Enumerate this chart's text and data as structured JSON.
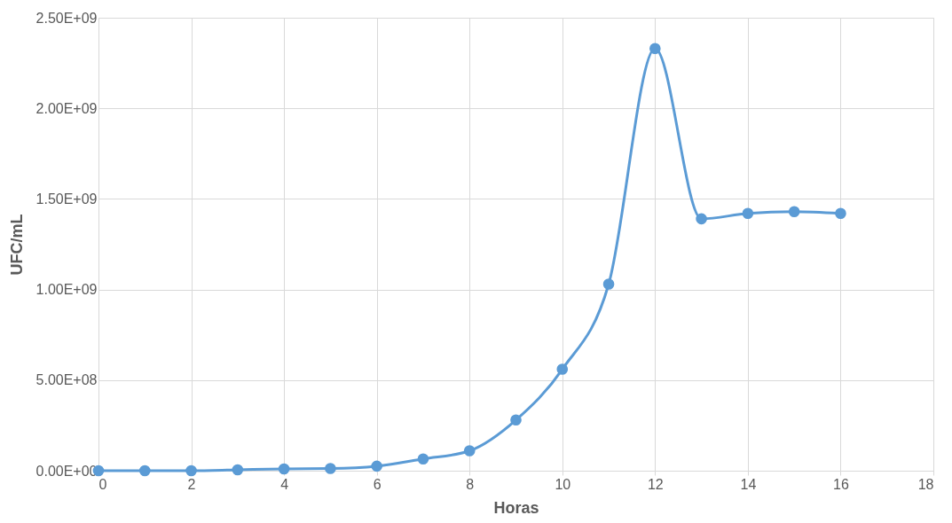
{
  "chart_data": {
    "type": "line",
    "xlabel": "Horas",
    "ylabel": "UFC/mL",
    "x": [
      0,
      1,
      2,
      3,
      4,
      5,
      6,
      7,
      8,
      9,
      10,
      11,
      12,
      13,
      14,
      15,
      16
    ],
    "series": [
      {
        "color": "#5b9bd5",
        "values": [
          0,
          0,
          0,
          5000000,
          10000000,
          12000000,
          25000000,
          65000000,
          110000000,
          280000000,
          560000000,
          1030000000,
          2330000000,
          1390000000,
          1420000000,
          1430000000,
          1420000000
        ]
      }
    ],
    "xlim": [
      0,
      18
    ],
    "xticks": [
      0,
      2,
      4,
      6,
      8,
      10,
      12,
      14,
      16,
      18
    ],
    "ylim": [
      0,
      2500000000
    ],
    "yticks": [
      {
        "value": 0,
        "label": "0.00E+00"
      },
      {
        "value": 500000000,
        "label": "5.00E+08"
      },
      {
        "value": 1000000000,
        "label": "1.00E+09"
      },
      {
        "value": 1500000000,
        "label": "1.50E+09"
      },
      {
        "value": 2000000000,
        "label": "2.00E+09"
      },
      {
        "value": 2500000000,
        "label": "2.50E+09"
      }
    ],
    "grid": true,
    "marker": "circle",
    "line_style": "solid",
    "legend": false
  }
}
